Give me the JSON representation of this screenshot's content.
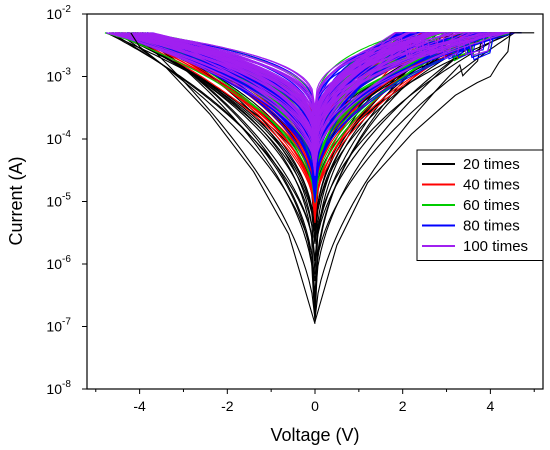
{
  "chart_data": {
    "type": "line",
    "title": "",
    "xlabel": "Voltage (V)",
    "ylabel": "Current (A)",
    "xlim": [
      -5.2,
      5.2
    ],
    "ylim": [
      1e-08,
      0.01
    ],
    "yscale": "log",
    "compliance_current": 0.005,
    "x_ticks": [
      {
        "value": -4,
        "label": "-4"
      },
      {
        "value": -2,
        "label": "-2"
      },
      {
        "value": 0,
        "label": "0"
      },
      {
        "value": 2,
        "label": "2"
      },
      {
        "value": 4,
        "label": "4"
      }
    ],
    "y_ticks": [
      {
        "value": 1e-08,
        "label": "10",
        "exp": "-8"
      },
      {
        "value": 1e-07,
        "label": "10",
        "exp": "-7"
      },
      {
        "value": 1e-06,
        "label": "10",
        "exp": "-6"
      },
      {
        "value": 1e-05,
        "label": "10",
        "exp": "-5"
      },
      {
        "value": 0.0001,
        "label": "10",
        "exp": "-4"
      },
      {
        "value": 0.001,
        "label": "10",
        "exp": "-3"
      },
      {
        "value": 0.01,
        "label": "10",
        "exp": "-2"
      }
    ],
    "legend_position": "right",
    "series": [
      {
        "name": "20 times",
        "color": "#000000",
        "min_current": [
          1.1e-07,
          4e-07,
          1e-06,
          2e-06,
          4e-06,
          1e-05,
          2.5e-05,
          5e-05
        ]
      },
      {
        "name": "40 times",
        "color": "#ff0000",
        "min_current": [
          4.5e-06,
          6e-06,
          9e-06,
          1.3e-05,
          2e-05,
          3e-05,
          5e-05,
          8e-05
        ]
      },
      {
        "name": "60 times",
        "color": "#00cc00",
        "min_current": [
          1e-05,
          1.5e-05,
          2e-05,
          3e-05,
          5e-05,
          7e-05
        ]
      },
      {
        "name": "80 times",
        "color": "#0000ff",
        "min_current": [
          1.2e-05,
          1.8e-05,
          2.5e-05,
          4e-05,
          6e-05,
          0.0001
        ]
      },
      {
        "name": "100 times",
        "color": "#a020f0",
        "min_current": [
          2.5e-05,
          3.5e-05,
          5e-05,
          7e-05,
          0.0001,
          0.00015
        ]
      }
    ]
  }
}
